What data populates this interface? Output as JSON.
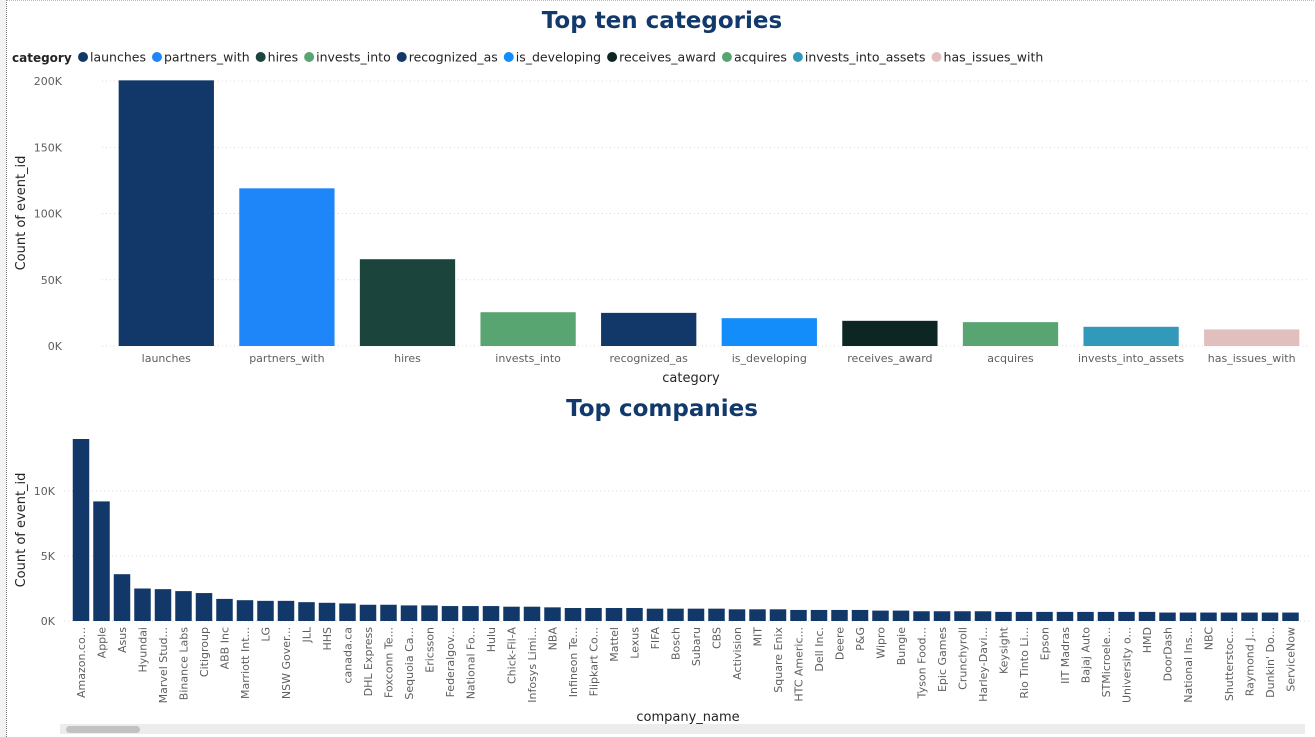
{
  "colors": {
    "title": "#12396b",
    "grid": "#d9d9d9",
    "bar_default": "#12386a"
  },
  "top_chart": {
    "title": "Top ten categories",
    "legend_title": "category",
    "xlabel": "category",
    "ylabel": "Count of event_id",
    "yticks": [
      "0K",
      "50K",
      "100K",
      "150K",
      "200K"
    ],
    "chart_data": {
      "type": "bar",
      "categories": [
        "launches",
        "partners_with",
        "hires",
        "invests_into",
        "recognized_as",
        "is_developing",
        "receives_award",
        "acquires",
        "invests_into_assets",
        "has_issues_with"
      ],
      "values": [
        200500,
        119000,
        65500,
        25500,
        25000,
        21000,
        19000,
        18000,
        14500,
        12500
      ],
      "colors": [
        "#12386a",
        "#1f86fa",
        "#1b443d",
        "#59a571",
        "#12386a",
        "#138dfa",
        "#0e2623",
        "#59a571",
        "#3399bb",
        "#e0bfbe"
      ],
      "ylim": [
        0,
        200000
      ],
      "ytick_values": [
        0,
        50000,
        100000,
        150000,
        200000
      ],
      "grid": true,
      "legend": "top-left"
    }
  },
  "bottom_chart": {
    "title": "Top companies",
    "xlabel": "company_name",
    "ylabel": "Count of event_id",
    "yticks": [
      "0K",
      "5K",
      "10K"
    ],
    "chart_data": {
      "type": "bar",
      "categories": [
        "Amazon.co...",
        "Apple",
        "Asus",
        "Hyundai",
        "Marvel Stud...",
        "Binance Labs",
        "Citigroup",
        "ABB Inc",
        "Marriott Int...",
        "LG",
        "NSW Gover...",
        "JLL",
        "HHS",
        "canada.ca",
        "DHL Express",
        "Foxconn Te...",
        "Sequoia Ca...",
        "Ericsson",
        "Federalgov...",
        "National Fo...",
        "Hulu",
        "Chick-Fil-A",
        "Infosys Limi...",
        "NBA",
        "Infineon Te...",
        "Flipkart Co...",
        "Mattel",
        "Lexus",
        "FIFA",
        "Bosch",
        "Subaru",
        "CBS",
        "Activision",
        "MIT",
        "Square Enix",
        "HTC Americ...",
        "Dell Inc.",
        "Deere",
        "P&G",
        "Wipro",
        "Bungie",
        "Tyson Food...",
        "Epic Games",
        "Crunchyroll",
        "Harley-Davi...",
        "Keysight",
        "Rio Tinto Li...",
        "Epson",
        "IIT Madras",
        "Bajaj Auto",
        "STMicroele...",
        "University o...",
        "HMD",
        "DoorDash",
        "National Ins...",
        "NBC",
        "Shutterstoc...",
        "Raymond J...",
        "Dunkin' Do...",
        "ServiceNow"
      ],
      "values": [
        14000,
        9200,
        3600,
        2500,
        2450,
        2300,
        2150,
        1700,
        1600,
        1550,
        1550,
        1450,
        1400,
        1350,
        1250,
        1250,
        1200,
        1200,
        1150,
        1150,
        1150,
        1100,
        1100,
        1050,
        1000,
        1000,
        1000,
        1000,
        950,
        950,
        950,
        950,
        900,
        900,
        900,
        850,
        850,
        850,
        850,
        800,
        800,
        750,
        750,
        750,
        750,
        700,
        700,
        700,
        700,
        700,
        700,
        700,
        700,
        650,
        650,
        650,
        650,
        650,
        650,
        650
      ],
      "ylim": [
        0,
        14000
      ],
      "ytick_values": [
        0,
        5000,
        10000
      ],
      "grid": true
    }
  }
}
